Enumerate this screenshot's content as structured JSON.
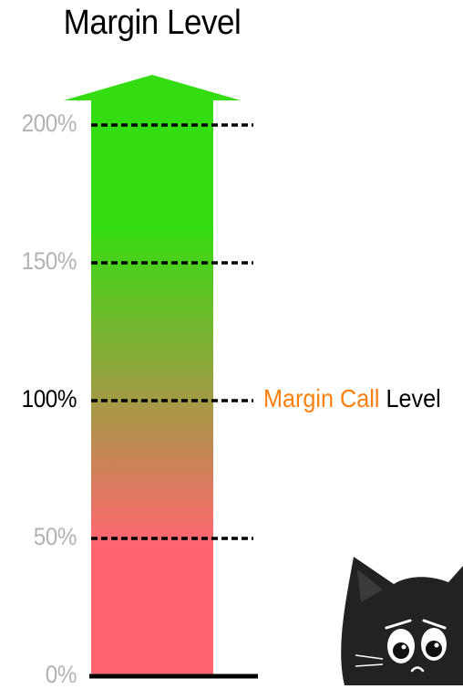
{
  "title": "Margin Level",
  "ticks": [
    {
      "label": "200%",
      "value": 200,
      "emphasis": false
    },
    {
      "label": "150%",
      "value": 150,
      "emphasis": false
    },
    {
      "label": "100%",
      "value": 100,
      "emphasis": true
    },
    {
      "label": "50%",
      "value": 50,
      "emphasis": false
    },
    {
      "label": "0%",
      "value": 0,
      "emphasis": false
    }
  ],
  "callout": {
    "value": 100,
    "highlight": "Margin Call",
    "rest": "Level"
  },
  "colors": {
    "top": "#33dd11",
    "bottom": "#ff6670",
    "tick_muted": "#b3b3b3",
    "tick_strong": "#000000",
    "callout_highlight": "#ff7f0e"
  },
  "illustration": {
    "name": "worried-black-cat"
  }
}
